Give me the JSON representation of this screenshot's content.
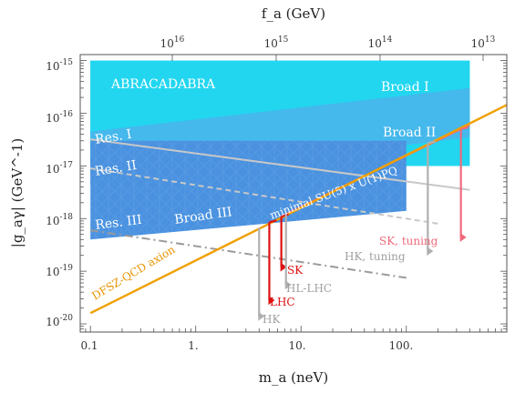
{
  "chart_data": {
    "type": "line",
    "xlabel": "m_a (neV)",
    "ylabel": "|g_aγ| (GeV^-1)",
    "top_xlabel": "f_a (GeV)",
    "xscale": "log",
    "yscale": "log",
    "xlim": [
      0.08,
      900
    ],
    "ylim": [
      7e-21,
      1.3e-15
    ],
    "x_tick_labels": [
      "0.1",
      "1.",
      "10.",
      "100."
    ],
    "y_tick_labels": [
      "10-20",
      "10-19",
      "10-18",
      "10-17",
      "10-16",
      "10-15"
    ],
    "top_tick_labels": [
      "1016",
      "1015",
      "1014",
      "1013"
    ],
    "regions": [
      {
        "name": "ABRACADABRA",
        "color": "#22d6f0",
        "points": [
          [
            0.1,
            1e-15
          ],
          [
            400,
            1e-15
          ],
          [
            400,
            1e-17
          ],
          [
            0.1,
            1e-17
          ]
        ]
      },
      {
        "name": "Broad I",
        "color": "#22d6f0",
        "points": [
          [
            0.1,
            1e-15
          ],
          [
            400,
            1e-15
          ],
          [
            400,
            1e-17
          ],
          [
            0.1,
            1e-17
          ]
        ]
      },
      {
        "name": "Broad II",
        "color": "#45b8ec",
        "points": [
          [
            0.1,
            4.5e-17
          ],
          [
            400,
            3e-16
          ],
          [
            400,
            3.5e-17
          ],
          [
            0.1,
            4.5e-18
          ]
        ]
      },
      {
        "name": "Broad III",
        "color": "#4a92e0",
        "points": [
          [
            0.1,
            3e-17
          ],
          [
            100,
            3e-17
          ],
          [
            100,
            1.4e-18
          ],
          [
            0.1,
            4e-19
          ]
        ]
      }
    ],
    "series": [
      {
        "name": "DFSZ-QCD axion",
        "style": "solid",
        "color": "#f0a000",
        "x": [
          0.1,
          1000
        ],
        "y": [
          1.6e-20,
          1.6e-16
        ]
      },
      {
        "name": "Res. I",
        "style": "solid",
        "color": "#c8c8c8",
        "x": [
          0.1,
          400
        ],
        "y": [
          3.2e-17,
          3.5e-18
        ]
      },
      {
        "name": "Res. II",
        "style": "dashed",
        "color": "#c8c8c8",
        "x": [
          0.1,
          200
        ],
        "y": [
          9e-18,
          8e-19
        ]
      },
      {
        "name": "Res. III",
        "style": "dashdot",
        "color": "#9a9a9a",
        "x": [
          0.1,
          100
        ],
        "y": [
          6e-19,
          7.5e-20
        ]
      },
      {
        "name": "minimal SU(5) x U(1)PQ",
        "style": "solid",
        "color": "#ee6a7c",
        "x": [
          6.5,
          400
        ],
        "y": [
          1.1e-18,
          6e-17
        ]
      }
    ],
    "projections": [
      {
        "name": "HK",
        "color": "#b0b0b0",
        "x": 4,
        "y_top": 6.7e-19,
        "y_bottom": 1.4e-20
      },
      {
        "name": "LHC",
        "color": "#dd1111",
        "x": 5,
        "y_top": 8.5e-19,
        "y_bottom": 2.8e-20
      },
      {
        "name": "SK",
        "color": "#dd1111",
        "x": 6.5,
        "y_top": 1.1e-18,
        "y_bottom": 1.2e-19
      },
      {
        "name": "HL-LHC",
        "color": "#b0b0b0",
        "x": 7.2,
        "y_top": 1.25e-18,
        "y_bottom": 5.5e-20
      },
      {
        "name": "HK, tuning",
        "color": "#b0b0b0",
        "x": 160,
        "y_top": 2.7e-17,
        "y_bottom": 2.4e-19
      },
      {
        "name": "SK, tuning",
        "color": "#ee6a7c",
        "x": 330,
        "y_top": 5e-17,
        "y_bottom": 4.4e-19
      }
    ]
  }
}
